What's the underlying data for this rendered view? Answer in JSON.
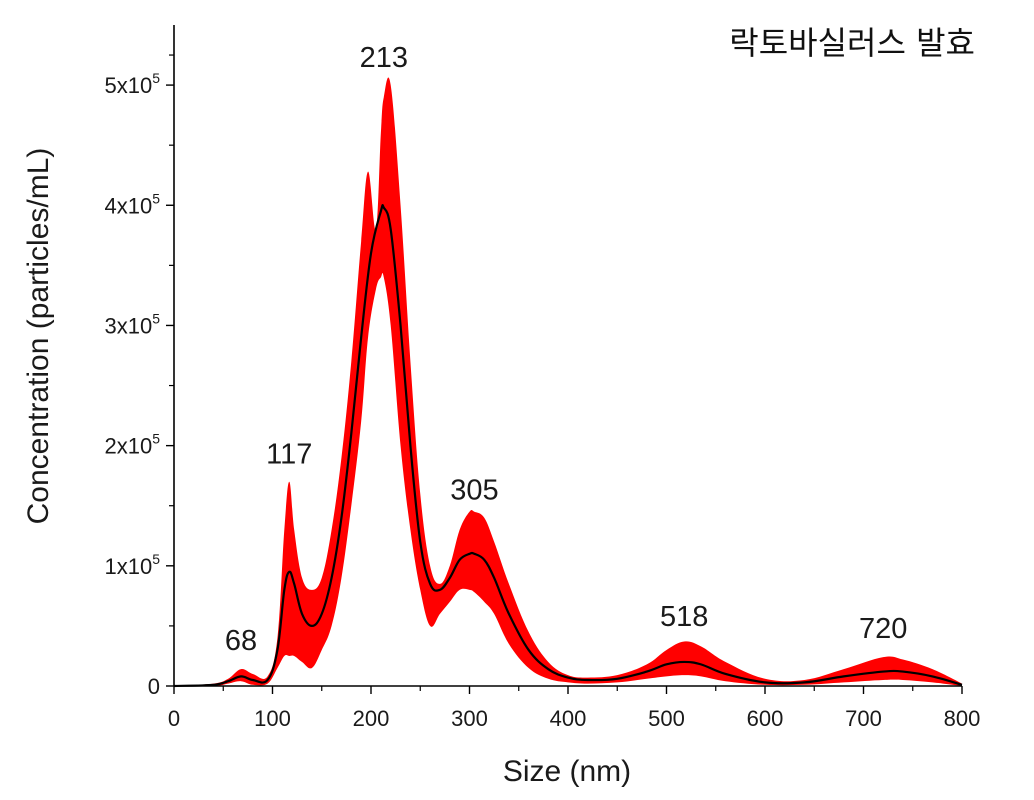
{
  "chart_data": {
    "type": "area",
    "title": "락토바실러스 발효",
    "xlabel": "Size (nm)",
    "ylabel": "Concentration (particles/mL)",
    "xlim": [
      0,
      800
    ],
    "ylim": [
      0,
      550000
    ],
    "grid": false,
    "legend": "none",
    "x_ticks": [
      0,
      100,
      200,
      300,
      400,
      500,
      600,
      700,
      800
    ],
    "x_tick_labels": [
      "0",
      "100",
      "200",
      "300",
      "400",
      "500",
      "600",
      "700",
      "800"
    ],
    "y_ticks": [
      0,
      100000,
      200000,
      300000,
      400000,
      500000
    ],
    "y_tick_labels": [
      {
        "mantissa": "0",
        "base": "",
        "exp": ""
      },
      {
        "mantissa": "1x10",
        "base": "",
        "exp": "5"
      },
      {
        "mantissa": "2x10",
        "base": "",
        "exp": "5"
      },
      {
        "mantissa": "3x10",
        "base": "",
        "exp": "5"
      },
      {
        "mantissa": "4x10",
        "base": "",
        "exp": "5"
      },
      {
        "mantissa": "5x10",
        "base": "",
        "exp": "5"
      }
    ],
    "annotations": [
      {
        "text": "68",
        "x": 68,
        "y": 30000
      },
      {
        "text": "117",
        "x": 117,
        "y": 185000
      },
      {
        "text": "213",
        "x": 213,
        "y": 515000
      },
      {
        "text": "305",
        "x": 305,
        "y": 155000
      },
      {
        "text": "518",
        "x": 518,
        "y": 50000
      },
      {
        "text": "720",
        "x": 720,
        "y": 40000
      }
    ],
    "colors": {
      "mean_line": "#000000",
      "error_band": "#ff0000"
    },
    "series": [
      {
        "role": "mean",
        "x": [
          0,
          40,
          55,
          68,
          80,
          95,
          105,
          112,
          117,
          122,
          130,
          140,
          150,
          160,
          170,
          180,
          190,
          200,
          210,
          213,
          220,
          230,
          240,
          250,
          260,
          270,
          280,
          290,
          300,
          305,
          315,
          325,
          340,
          360,
          380,
          400,
          420,
          450,
          480,
          500,
          518,
          535,
          560,
          600,
          640,
          680,
          720,
          740,
          770,
          800
        ],
        "y": [
          0,
          1000,
          4000,
          8000,
          5000,
          5000,
          30000,
          80000,
          95000,
          85000,
          60000,
          50000,
          60000,
          90000,
          140000,
          210000,
          290000,
          360000,
          395000,
          398000,
          380000,
          300000,
          200000,
          120000,
          85000,
          80000,
          90000,
          105000,
          110000,
          110000,
          105000,
          90000,
          60000,
          30000,
          14000,
          7000,
          5000,
          6000,
          12000,
          18000,
          20000,
          18000,
          10000,
          3000,
          3000,
          8000,
          12000,
          12000,
          8000,
          1000
        ]
      },
      {
        "role": "error-band",
        "x": [
          0,
          40,
          55,
          68,
          80,
          95,
          105,
          112,
          117,
          122,
          130,
          140,
          150,
          160,
          170,
          180,
          190,
          197,
          205,
          210,
          213,
          220,
          230,
          240,
          250,
          260,
          270,
          280,
          290,
          300,
          305,
          315,
          325,
          340,
          360,
          380,
          400,
          420,
          450,
          480,
          500,
          518,
          535,
          560,
          600,
          640,
          680,
          720,
          740,
          770,
          800
        ],
        "upper": [
          0,
          2000,
          6000,
          14000,
          10000,
          8000,
          40000,
          130000,
          170000,
          130000,
          90000,
          80000,
          90000,
          130000,
          190000,
          270000,
          370000,
          428000,
          380000,
          460000,
          490000,
          500000,
          400000,
          270000,
          160000,
          100000,
          85000,
          100000,
          130000,
          145000,
          145000,
          140000,
          120000,
          85000,
          45000,
          20000,
          9000,
          7000,
          9000,
          18000,
          30000,
          37000,
          33000,
          20000,
          6000,
          5000,
          14000,
          24000,
          22000,
          14000,
          2000
        ],
        "lower": [
          0,
          0,
          2000,
          4000,
          1000,
          2000,
          15000,
          25000,
          25000,
          25000,
          20000,
          15000,
          30000,
          50000,
          90000,
          150000,
          220000,
          290000,
          330000,
          340000,
          340000,
          300000,
          200000,
          130000,
          80000,
          50000,
          60000,
          70000,
          80000,
          80000,
          78000,
          70000,
          60000,
          35000,
          15000,
          6000,
          3000,
          2000,
          3000,
          6000,
          8000,
          9000,
          8000,
          4000,
          1000,
          1000,
          3000,
          5000,
          5000,
          3000,
          0
        ]
      }
    ]
  }
}
